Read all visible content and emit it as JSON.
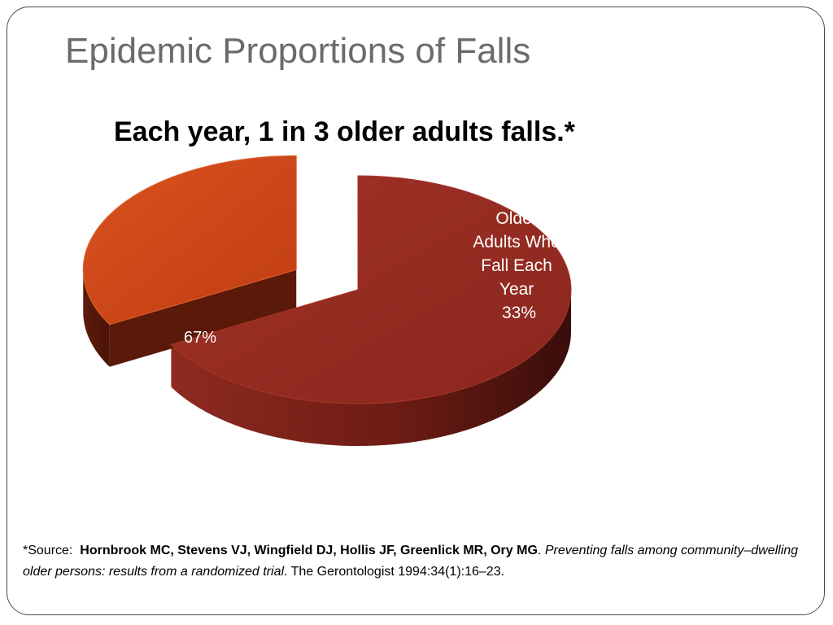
{
  "slide": {
    "title": "Epidemic Proportions of Falls",
    "subtitle": "Each year, 1 in 3 older adults falls.*"
  },
  "chart_data": {
    "type": "pie",
    "style": "3d-exploded",
    "slices": [
      {
        "label": "",
        "value": 67,
        "value_label": "67%",
        "color": "#952a22",
        "exploded": false
      },
      {
        "label_lines": [
          "Older",
          "Adults Who",
          "Fall Each",
          "Year"
        ],
        "value": 33,
        "value_label": "33%",
        "color": "#cd4419",
        "exploded": true
      }
    ]
  },
  "citation": {
    "prefix": "*Source:",
    "authors": "Hornbrook MC, Stevens VJ, Wingfield DJ, Hollis JF, Greenlick MR, Ory MG",
    "period": ".",
    "title": "Preventing falls among community–dwelling older persons: results from a randomized trial",
    "journal": ". The Gerontologist 1994:34(1):16–23."
  }
}
